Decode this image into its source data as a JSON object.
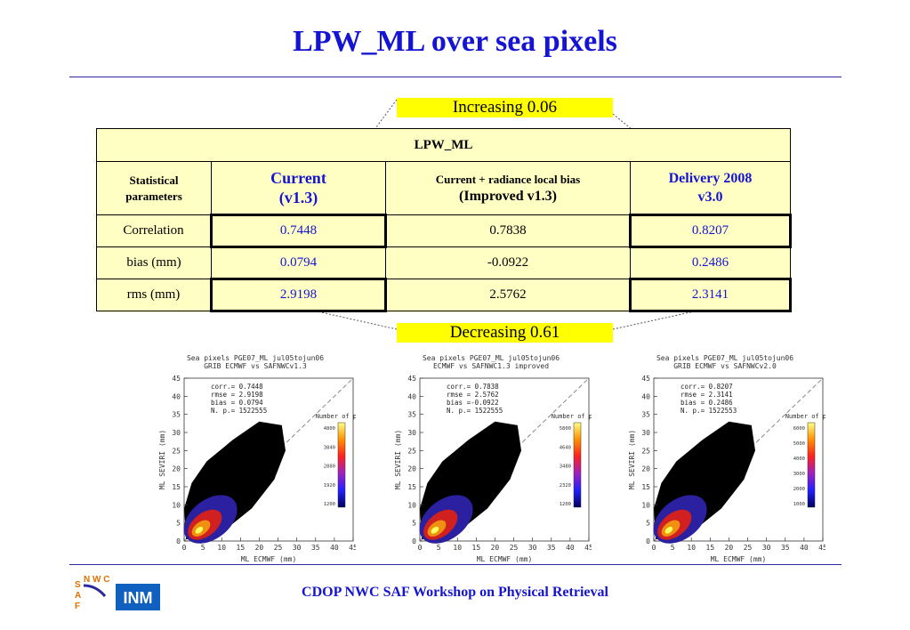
{
  "title": "LPW_ML over sea pixels",
  "callouts": {
    "increasing": "Increasing 0.06",
    "decreasing": "Decreasing 0.61"
  },
  "table": {
    "header": "LPW_ML",
    "columns": {
      "stat": "Statistical parameters",
      "current_line1": "Current",
      "current_line2": "(v1.3)",
      "crl_line1": "Current + radiance local bias",
      "crl_line2": "(Improved  v1.3)",
      "delivery_line1": "Delivery 2008",
      "delivery_line2": "v3.0"
    },
    "rows": [
      {
        "label": "Correlation",
        "current": "0.7448",
        "crl": "0.7838",
        "delivery": "0.8207"
      },
      {
        "label": "bias (mm)",
        "current": "0.0794",
        "crl": "-0.0922",
        "delivery": "0.2486"
      },
      {
        "label": "rms (mm)",
        "current": "2.9198",
        "crl": "2.5762",
        "delivery": "2.3141"
      }
    ]
  },
  "plots": [
    {
      "title1": "Sea pixels PGE07_ML jul05tojun06",
      "title2": "GRIB ECMWF vs SAFNWCv1.3",
      "corr": "corr.= 0.7448",
      "rmse": "rmse = 2.9198",
      "bias": "bias = 0.0794",
      "np": "N. p.= 1522555",
      "cb_title": "Number of p.",
      "cb_ticks": [
        "4800",
        "3840",
        "2880",
        "1920",
        "1200"
      ]
    },
    {
      "title1": "Sea pixels PGE07_ML jul05tojun06",
      "title2": "ECMWF vs SAFNWC1.3 improved",
      "corr": "corr.= 0.7838",
      "rmse": "rmse = 2.5762",
      "bias": "bias =-0.0922",
      "np": "N. p.= 1522555",
      "cb_title": "Number of p.",
      "cb_ticks": [
        "5800",
        "4640",
        "3480",
        "2320",
        "1200"
      ]
    },
    {
      "title1": "Sea pixels PGE07_ML jul05tojun06",
      "title2": "GRIB ECMWF vs SAFNWCv2.0",
      "corr": "corr.= 0.8207",
      "rmse": "rmse = 2.3141",
      "bias": "bias = 0.2486",
      "np": "N. p.= 1522553",
      "cb_title": "Number of p.",
      "cb_ticks": [
        "6000",
        "5000",
        "4000",
        "3000",
        "2000",
        "1000"
      ]
    }
  ],
  "plot_axes": {
    "xlabel": "ML ECMWF (mm)",
    "ylabel": "ML SEVIRI (mm)",
    "ticks": [
      "0",
      "5",
      "10",
      "15",
      "20",
      "25",
      "30",
      "35",
      "40",
      "45"
    ]
  },
  "logo": {
    "saf_letters": "S A F",
    "nwc_letters": "N W C",
    "inm": "INM"
  },
  "footer": "CDOP NWC SAF Workshop on Physical Retrieval"
}
